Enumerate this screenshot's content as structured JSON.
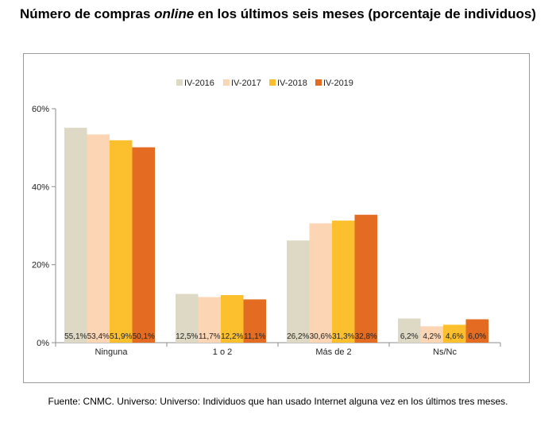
{
  "title": {
    "prefix": "Número de compras ",
    "emphasis": "online",
    "suffix": " en los últimos seis meses (porcentaje de individuos)"
  },
  "source": "Fuente: CNMC. Universo: Universo: Individuos que han usado Internet alguna vez en los últimos tres meses.",
  "colors": [
    "#ddd9c4",
    "#fcd5b5",
    "#fcbf2d",
    "#e36c22"
  ],
  "chart_data": {
    "type": "bar",
    "title": "",
    "xlabel": "",
    "ylabel": "",
    "categories": [
      "Ninguna",
      "1 o 2",
      "Más de 2",
      "Ns/Nc"
    ],
    "series": [
      {
        "name": "IV-2016",
        "values": [
          55.1,
          12.5,
          26.2,
          6.2
        ],
        "labels": [
          "55,1%",
          "12,5%",
          "26,2%",
          "6,2%"
        ]
      },
      {
        "name": "IV-2017",
        "values": [
          53.4,
          11.7,
          30.6,
          4.2
        ],
        "labels": [
          "53,4%",
          "11,7%",
          "30,6%",
          "4,2%"
        ]
      },
      {
        "name": "IV-2018",
        "values": [
          51.9,
          12.2,
          31.3,
          4.6
        ],
        "labels": [
          "51,9%",
          "12,2%",
          "31,3%",
          "4,6%"
        ]
      },
      {
        "name": "IV-2019",
        "values": [
          50.1,
          11.1,
          32.8,
          6.0
        ],
        "labels": [
          "50,1%",
          "11,1%",
          "32,8%",
          "6,0%"
        ]
      }
    ],
    "ylim": [
      0,
      60
    ],
    "yticks": [
      0,
      20,
      40,
      60
    ],
    "ytick_labels": [
      "0%",
      "20%",
      "40%",
      "60%"
    ],
    "legend_position": "top-center",
    "grid": false
  }
}
